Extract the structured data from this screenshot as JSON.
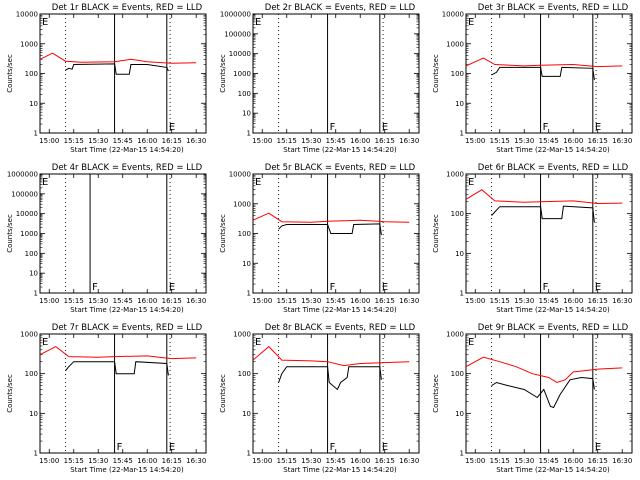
{
  "figure": {
    "xlabel": "Start Time (22-Mar-15 14:54:20)",
    "ylabel": "Counts/sec",
    "x_ticks": [
      "15:00",
      "15:15",
      "15:30",
      "15:45",
      "16:00",
      "16:15",
      "16:30"
    ]
  },
  "colors": {
    "events": "#000000",
    "lld": "#ff0000",
    "axes": "#000000"
  },
  "chart_data": [
    {
      "type": "line",
      "title": "Det 1r BLACK = Events, RED = LLD",
      "yscale": "log",
      "ylim": [
        1,
        10000
      ],
      "y_ticks": [
        "1",
        "10",
        "100",
        "1000",
        "10000"
      ],
      "xlim": [
        "14:54:20",
        "16:36"
      ],
      "grid": false,
      "markers": [
        {
          "time": "15:10",
          "label": "",
          "style": "dotted"
        },
        {
          "time": "15:40",
          "label": "",
          "style": "solid"
        },
        {
          "time": "16:12",
          "label": "E",
          "style": "solid"
        },
        {
          "time": "16:14",
          "label": "",
          "style": "dotted"
        }
      ],
      "corner_label": "E",
      "series": [
        {
          "name": "Events",
          "color": "#000000",
          "x": [
            "15:10",
            "15:12",
            "15:14",
            "15:15",
            "15:40",
            "15:41",
            "15:49",
            "15:50",
            "16:00",
            "16:12",
            "16:13"
          ],
          "y": [
            130,
            150,
            140,
            200,
            210,
            95,
            95,
            200,
            200,
            160,
            120
          ]
        },
        {
          "name": "LLD",
          "color": "#ff0000",
          "x": [
            "14:54:20",
            "15:02",
            "15:10",
            "15:20",
            "15:40",
            "15:50",
            "16:00",
            "16:15",
            "16:30"
          ],
          "y": [
            300,
            480,
            260,
            240,
            250,
            300,
            250,
            220,
            230
          ]
        }
      ]
    },
    {
      "type": "line",
      "title": "Det 2r BLACK = Events, RED = LLD",
      "yscale": "log",
      "ylim": [
        1,
        1000000
      ],
      "y_ticks": [
        "1",
        "10",
        "100",
        "1000",
        "10000",
        "100000",
        "1000000"
      ],
      "xlim": [
        "14:54:20",
        "16:36"
      ],
      "grid": false,
      "markers": [
        {
          "time": "15:10",
          "label": "",
          "style": "dotted"
        },
        {
          "time": "15:40",
          "label": "F",
          "style": "solid"
        },
        {
          "time": "16:12",
          "label": "E",
          "style": "solid"
        },
        {
          "time": "16:14",
          "label": "",
          "style": "dotted"
        }
      ],
      "corner_label": "E",
      "series": []
    },
    {
      "type": "line",
      "title": "Det 3r BLACK = Events, RED = LLD",
      "yscale": "log",
      "ylim": [
        1,
        10000
      ],
      "y_ticks": [
        "1",
        "10",
        "100",
        "1000",
        "10000"
      ],
      "xlim": [
        "14:54:20",
        "16:36"
      ],
      "grid": false,
      "markers": [
        {
          "time": "15:10",
          "label": "",
          "style": "dotted"
        },
        {
          "time": "15:40",
          "label": "F",
          "style": "solid"
        },
        {
          "time": "16:12",
          "label": "E",
          "style": "solid"
        },
        {
          "time": "16:14",
          "label": "",
          "style": "dotted"
        }
      ],
      "corner_label": "E",
      "series": [
        {
          "name": "Events",
          "color": "#000000",
          "x": [
            "15:10",
            "15:13",
            "15:15",
            "15:40",
            "15:41",
            "15:52",
            "15:53",
            "16:12",
            "16:13"
          ],
          "y": [
            90,
            110,
            160,
            160,
            80,
            80,
            160,
            150,
            60
          ]
        },
        {
          "name": "LLD",
          "color": "#ff0000",
          "x": [
            "14:54:20",
            "15:05",
            "15:12",
            "15:30",
            "15:40",
            "16:00",
            "16:15",
            "16:30"
          ],
          "y": [
            180,
            330,
            200,
            180,
            190,
            200,
            170,
            180
          ]
        }
      ]
    },
    {
      "type": "line",
      "title": "Det 4r BLACK = Events, RED = LLD",
      "yscale": "log",
      "ylim": [
        1,
        1000000
      ],
      "y_ticks": [
        "1",
        "10",
        "100",
        "1000",
        "10000",
        "100000",
        "1000000"
      ],
      "xlim": [
        "14:54:20",
        "16:36"
      ],
      "grid": false,
      "markers": [
        {
          "time": "15:10",
          "label": "",
          "style": "dotted"
        },
        {
          "time": "15:25",
          "label": "F",
          "style": "solid"
        },
        {
          "time": "16:12",
          "label": "E",
          "style": "solid"
        },
        {
          "time": "16:14",
          "label": "",
          "style": "dotted"
        }
      ],
      "corner_label": "E",
      "series": []
    },
    {
      "type": "line",
      "title": "Det 5r BLACK = Events, RED = LLD",
      "yscale": "log",
      "ylim": [
        1,
        10000
      ],
      "y_ticks": [
        "1",
        "10",
        "100",
        "1000",
        "10000"
      ],
      "xlim": [
        "14:54:20",
        "16:36"
      ],
      "grid": false,
      "markers": [
        {
          "time": "15:10",
          "label": "",
          "style": "dotted"
        },
        {
          "time": "15:40",
          "label": "F",
          "style": "solid"
        },
        {
          "time": "16:12",
          "label": "E",
          "style": "solid"
        },
        {
          "time": "16:14",
          "label": "",
          "style": "dotted"
        }
      ],
      "corner_label": "E",
      "series": [
        {
          "name": "Events",
          "color": "#000000",
          "x": [
            "15:10",
            "15:12",
            "15:15",
            "15:40",
            "15:42",
            "15:55",
            "15:56",
            "16:12",
            "16:13"
          ],
          "y": [
            140,
            180,
            200,
            200,
            100,
            100,
            200,
            210,
            90
          ]
        },
        {
          "name": "LLD",
          "color": "#ff0000",
          "x": [
            "14:54:20",
            "15:04",
            "15:12",
            "15:30",
            "15:40",
            "16:00",
            "16:15",
            "16:30"
          ],
          "y": [
            280,
            480,
            250,
            240,
            260,
            280,
            250,
            240
          ]
        }
      ]
    },
    {
      "type": "line",
      "title": "Det 6r BLACK = Events, RED = LLD",
      "yscale": "log",
      "ylim": [
        1,
        1000
      ],
      "y_ticks": [
        "1",
        "10",
        "100",
        "1000"
      ],
      "xlim": [
        "14:54:20",
        "16:36"
      ],
      "grid": false,
      "markers": [
        {
          "time": "15:10",
          "label": "",
          "style": "dotted"
        },
        {
          "time": "15:40",
          "label": "F",
          "style": "solid"
        },
        {
          "time": "16:12",
          "label": "E",
          "style": "solid"
        },
        {
          "time": "16:14",
          "label": "",
          "style": "dotted"
        }
      ],
      "corner_label": "E",
      "series": [
        {
          "name": "Events",
          "color": "#000000",
          "x": [
            "15:10",
            "15:12",
            "15:15",
            "15:40",
            "15:41",
            "15:53",
            "15:54",
            "16:12",
            "16:13"
          ],
          "y": [
            90,
            110,
            150,
            150,
            75,
            75,
            155,
            140,
            60
          ]
        },
        {
          "name": "LLD",
          "color": "#ff0000",
          "x": [
            "14:54:20",
            "15:04",
            "15:12",
            "15:30",
            "15:40",
            "16:00",
            "16:15",
            "16:30"
          ],
          "y": [
            230,
            400,
            210,
            195,
            200,
            210,
            180,
            185
          ]
        }
      ]
    },
    {
      "type": "line",
      "title": "Det 7r BLACK = Events, RED = LLD",
      "yscale": "log",
      "ylim": [
        1,
        1000
      ],
      "y_ticks": [
        "1",
        "10",
        "100",
        "1000"
      ],
      "xlim": [
        "14:54:20",
        "16:36"
      ],
      "grid": false,
      "markers": [
        {
          "time": "15:10",
          "label": "",
          "style": "dotted"
        },
        {
          "time": "15:40",
          "label": "F",
          "style": "solid"
        },
        {
          "time": "16:12",
          "label": "E",
          "style": "solid"
        },
        {
          "time": "16:14",
          "label": "",
          "style": "dotted"
        }
      ],
      "corner_label": "E",
      "series": [
        {
          "name": "Events",
          "color": "#000000",
          "x": [
            "15:10",
            "15:12",
            "15:15",
            "15:40",
            "15:41",
            "15:52",
            "15:53",
            "16:12",
            "16:13"
          ],
          "y": [
            120,
            150,
            200,
            200,
            100,
            100,
            200,
            180,
            90
          ]
        },
        {
          "name": "LLD",
          "color": "#ff0000",
          "x": [
            "14:54:20",
            "15:04",
            "15:12",
            "15:30",
            "15:40",
            "16:00",
            "16:15",
            "16:30"
          ],
          "y": [
            300,
            480,
            270,
            260,
            270,
            280,
            240,
            250
          ]
        }
      ]
    },
    {
      "type": "line",
      "title": "Det 8r BLACK = Events, RED = LLD",
      "yscale": "log",
      "ylim": [
        1,
        1000
      ],
      "y_ticks": [
        "1",
        "10",
        "100",
        "1000"
      ],
      "xlim": [
        "14:54:20",
        "16:36"
      ],
      "grid": false,
      "markers": [
        {
          "time": "15:10",
          "label": "",
          "style": "dotted"
        },
        {
          "time": "15:40",
          "label": "F",
          "style": "solid"
        },
        {
          "time": "16:12",
          "label": "E",
          "style": "solid"
        },
        {
          "time": "16:14",
          "label": "",
          "style": "dotted"
        }
      ],
      "corner_label": "E",
      "series": [
        {
          "name": "Events",
          "color": "#000000",
          "x": [
            "15:10",
            "15:12",
            "15:15",
            "15:40",
            "15:41",
            "15:46",
            "15:48",
            "15:52",
            "15:53",
            "16:12",
            "16:13"
          ],
          "y": [
            60,
            100,
            150,
            150,
            60,
            40,
            60,
            80,
            150,
            150,
            70
          ]
        },
        {
          "name": "LLD",
          "color": "#ff0000",
          "x": [
            "14:54:20",
            "15:04",
            "15:12",
            "15:30",
            "15:40",
            "15:50",
            "16:00",
            "16:15",
            "16:30"
          ],
          "y": [
            220,
            480,
            220,
            210,
            200,
            160,
            180,
            190,
            200
          ]
        }
      ]
    },
    {
      "type": "line",
      "title": "Det 9r BLACK = Events, RED = LLD",
      "yscale": "log",
      "ylim": [
        1,
        1000
      ],
      "y_ticks": [
        "1",
        "10",
        "100",
        "1000"
      ],
      "xlim": [
        "14:54:20",
        "16:36"
      ],
      "grid": false,
      "markers": [
        {
          "time": "15:10",
          "label": "",
          "style": "dotted"
        },
        {
          "time": "15:40",
          "label": "",
          "style": "solid"
        },
        {
          "time": "16:12",
          "label": "E",
          "style": "solid"
        },
        {
          "time": "16:14",
          "label": "",
          "style": "dotted"
        }
      ],
      "corner_label": "E",
      "series": [
        {
          "name": "Events",
          "color": "#000000",
          "x": [
            "15:10",
            "15:13",
            "15:20",
            "15:30",
            "15:38",
            "15:42",
            "15:46",
            "15:48",
            "15:52",
            "15:58",
            "16:05",
            "16:12",
            "16:13"
          ],
          "y": [
            50,
            60,
            50,
            40,
            25,
            40,
            15,
            14,
            30,
            70,
            80,
            75,
            40
          ]
        },
        {
          "name": "LLD",
          "color": "#ff0000",
          "x": [
            "14:54:20",
            "15:05",
            "15:15",
            "15:25",
            "15:35",
            "15:45",
            "15:50",
            "15:55",
            "16:00",
            "16:15",
            "16:30"
          ],
          "y": [
            150,
            260,
            200,
            150,
            100,
            80,
            60,
            70,
            110,
            130,
            140
          ]
        }
      ]
    }
  ]
}
